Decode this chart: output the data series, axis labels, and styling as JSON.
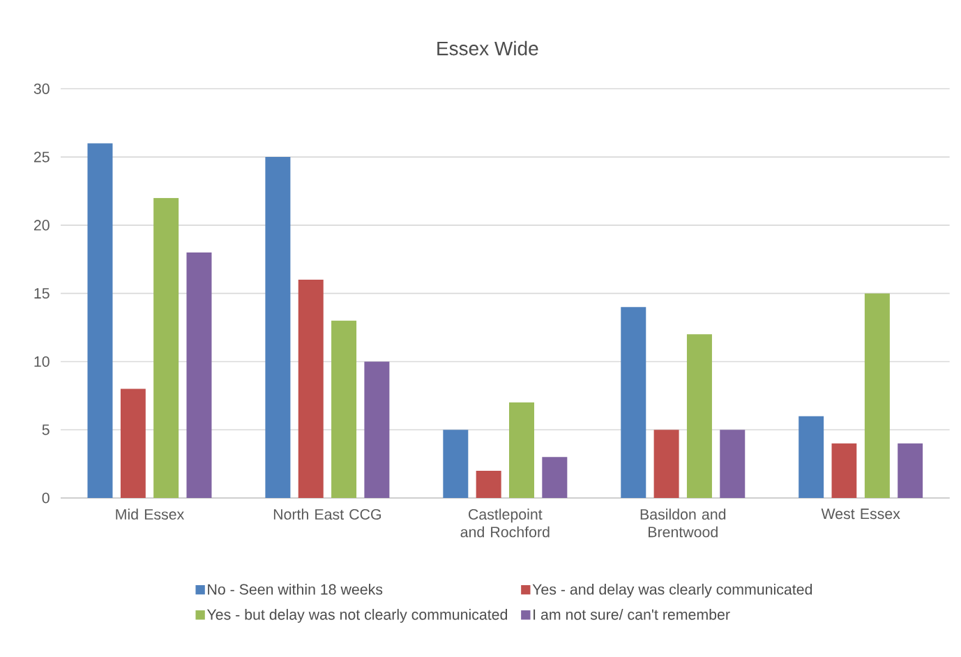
{
  "chart_data": {
    "type": "bar",
    "title": "Essex Wide",
    "categories": [
      "Mid Essex",
      "North East CCG",
      "Castlepoint and Rochford",
      "Basildon and Brentwood",
      "West Essex"
    ],
    "series": [
      {
        "name": "No - Seen within 18 weeks",
        "color": "#4f81bd",
        "values": [
          26,
          25,
          5,
          14,
          6
        ]
      },
      {
        "name": "Yes - and delay was clearly communicated",
        "color": "#c0504d",
        "values": [
          8,
          16,
          2,
          5,
          4
        ]
      },
      {
        "name": "Yes - but delay was not clearly communicated",
        "color": "#9bbb59",
        "values": [
          22,
          13,
          7,
          12,
          15
        ]
      },
      {
        "name": "I am not sure/ can't remember",
        "color": "#8064a2",
        "values": [
          18,
          10,
          3,
          5,
          4
        ]
      }
    ],
    "ylim": [
      0,
      30
    ],
    "yticks": [
      0,
      5,
      10,
      15,
      20,
      25,
      30
    ],
    "grid": "y",
    "legend": "bottom"
  }
}
